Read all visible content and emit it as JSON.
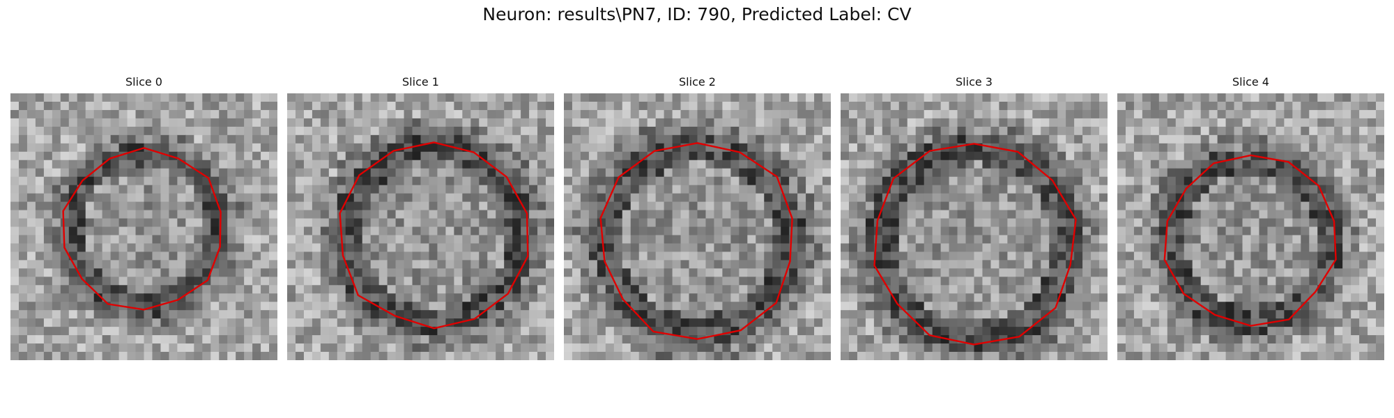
{
  "figure": {
    "title": "Neuron: results\\PN7, ID: 790, Predicted Label: CV"
  },
  "contour_color": "#e00000",
  "slices": [
    {
      "title": "Slice 0"
    },
    {
      "title": "Slice 1"
    },
    {
      "title": "Slice 2"
    },
    {
      "title": "Slice 3"
    },
    {
      "title": "Slice 4"
    }
  ]
}
